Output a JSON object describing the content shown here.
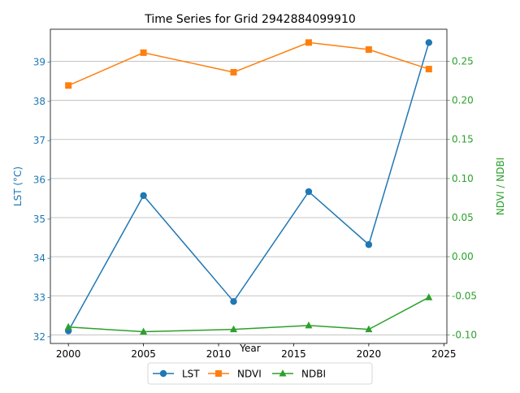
{
  "chart_data": {
    "type": "line",
    "title": "Time Series for Grid 2942884099910",
    "xlabel": "Year",
    "x": [
      2000,
      2005,
      2011,
      2016,
      2020,
      2024
    ],
    "xlim": [
      1998.8,
      2025.2
    ],
    "xticks": [
      2000,
      2005,
      2010,
      2015,
      2020,
      2025
    ],
    "y_left": {
      "label": "LST (°C)",
      "color": "#1f77b4",
      "lim": [
        31.83,
        39.84
      ],
      "ticks": [
        32,
        33,
        34,
        35,
        36,
        37,
        38,
        39
      ]
    },
    "y_right": {
      "label": "NDVI / NDBI",
      "color": "#2ca02c",
      "lim": [
        -0.111,
        0.291
      ],
      "ticks": [
        "-0.10",
        "-0.05",
        "0.00",
        "0.05",
        "0.10",
        "0.15",
        "0.20",
        "0.25"
      ]
    },
    "grid": "horizontal lines at right-axis ticks",
    "legend_position": "bottom-center",
    "series": [
      {
        "name": "LST",
        "axis": "left",
        "color": "#1f77b4",
        "marker": "circle",
        "values": [
          32.15,
          35.6,
          32.9,
          35.7,
          34.35,
          39.5
        ]
      },
      {
        "name": "NDVI",
        "axis": "right",
        "color": "#ff7f0e",
        "marker": "square",
        "values": [
          0.219,
          0.261,
          0.236,
          0.274,
          0.265,
          0.24
        ]
      },
      {
        "name": "NDBI",
        "axis": "right",
        "color": "#2ca02c",
        "marker": "triangle",
        "values": [
          -0.09,
          -0.096,
          -0.093,
          -0.088,
          -0.093,
          -0.052
        ]
      }
    ]
  }
}
